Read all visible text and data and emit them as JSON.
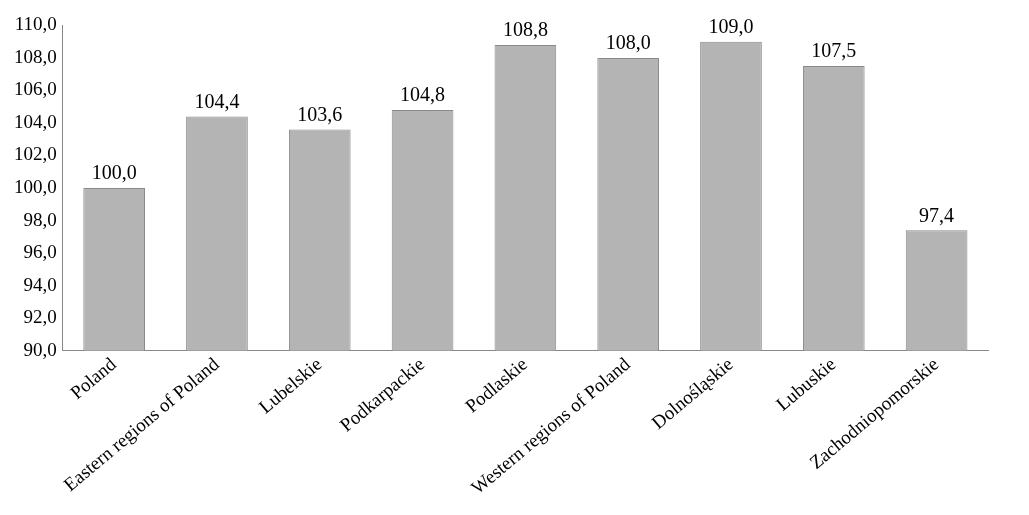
{
  "chart_data": {
    "type": "bar",
    "categories": [
      "Poland",
      "Eastern regions of Poland",
      "Lubelskie",
      "Podkarpackie",
      "Podlaskie",
      "Western regions of Poland",
      "Dolnośląskie",
      "Lubuskie",
      "Zachodniopomorskie"
    ],
    "values": [
      100.0,
      104.4,
      103.6,
      104.8,
      108.8,
      108.0,
      109.0,
      107.5,
      97.4
    ],
    "value_labels": [
      "100,0",
      "104,4",
      "103,6",
      "104,8",
      "108,8",
      "108,0",
      "109,0",
      "107,5",
      "97,4"
    ],
    "color": "#b4b4b4",
    "ylim": [
      90,
      110
    ],
    "yticks": [
      {
        "value": 90,
        "label": "90,0"
      },
      {
        "value": 92,
        "label": "92,0"
      },
      {
        "value": 94,
        "label": "94,0"
      },
      {
        "value": 96,
        "label": "96,0"
      },
      {
        "value": 98,
        "label": "98,0"
      },
      {
        "value": 100,
        "label": "100,0"
      },
      {
        "value": 102,
        "label": "102,0"
      },
      {
        "value": 104,
        "label": "104,0"
      },
      {
        "value": 106,
        "label": "106,0"
      },
      {
        "value": 108,
        "label": "108,0"
      },
      {
        "value": 110,
        "label": "110,0"
      }
    ],
    "grid": false,
    "legend": false
  }
}
